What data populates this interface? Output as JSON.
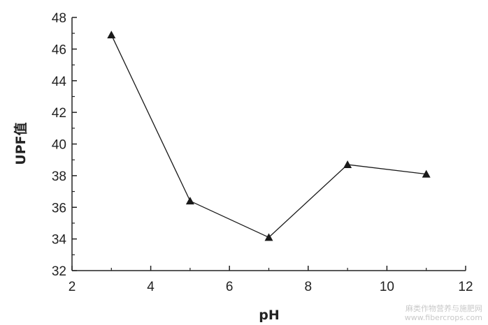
{
  "chart_data": {
    "type": "line",
    "xlabel": "pH",
    "ylabel": "UPF值",
    "xlim": [
      2,
      12
    ],
    "ylim": [
      32,
      48
    ],
    "xticks": [
      2,
      4,
      6,
      8,
      10,
      12
    ],
    "yticks": [
      32,
      34,
      36,
      38,
      40,
      42,
      44,
      46,
      48
    ],
    "grid": false,
    "series": [
      {
        "marker": "triangle",
        "color": "#1a1a1a",
        "x": [
          3,
          5,
          7,
          9,
          11
        ],
        "y": [
          46.9,
          36.4,
          34.1,
          38.7,
          38.1
        ]
      }
    ]
  },
  "watermark": {
    "line1": "麻类作物营养与施肥网",
    "line2": "www.fibercrops.com"
  }
}
